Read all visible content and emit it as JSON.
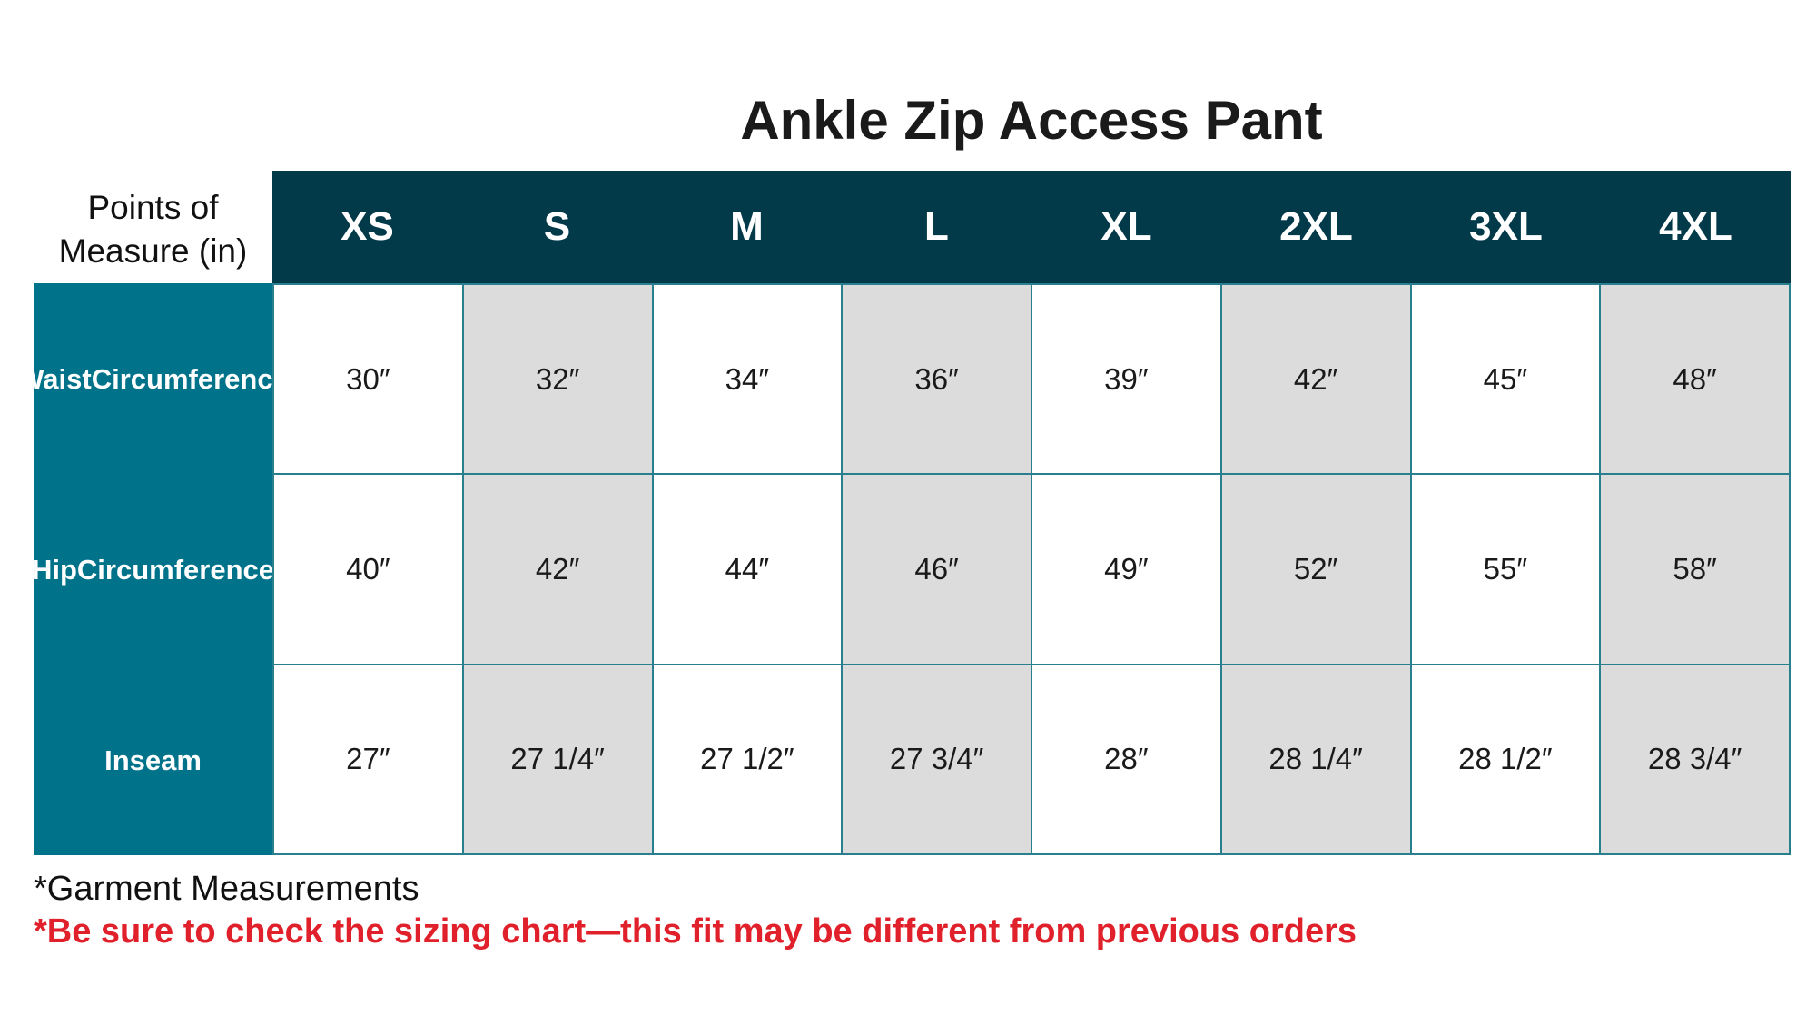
{
  "title": "Ankle Zip Access Pant",
  "points_label_line1": "Points of",
  "points_label_line2": "Measure (in)",
  "sizes": [
    "XS",
    "S",
    "M",
    "L",
    "XL",
    "2XL",
    "3XL",
    "4XL"
  ],
  "rows": [
    {
      "label_line1": "Waist",
      "label_line2": "Circumference",
      "values": [
        "30″",
        "32″",
        "34″",
        "36″",
        "39″",
        "42″",
        "45″",
        "48″"
      ]
    },
    {
      "label_line1": "Hip",
      "label_line2": "Circumference",
      "values": [
        "40″",
        "42″",
        "44″",
        "46″",
        "49″",
        "52″",
        "55″",
        "58″"
      ]
    },
    {
      "label_line1": "Inseam",
      "label_line2": "",
      "values": [
        "27″",
        "27 1/4″",
        "27 1/2″",
        "27 3/4″",
        "28″",
        "28 1/4″",
        "28 1/2″",
        "28 3/4″"
      ]
    }
  ],
  "note_garment": "*Garment Measurements",
  "note_warning": "*Be sure to check the sizing chart—this fit may be different from previous orders",
  "colors": {
    "header": "#033a4a",
    "row_label": "#00728a",
    "alt_cell": "#dcdcdc",
    "warning": "#e0202a"
  }
}
